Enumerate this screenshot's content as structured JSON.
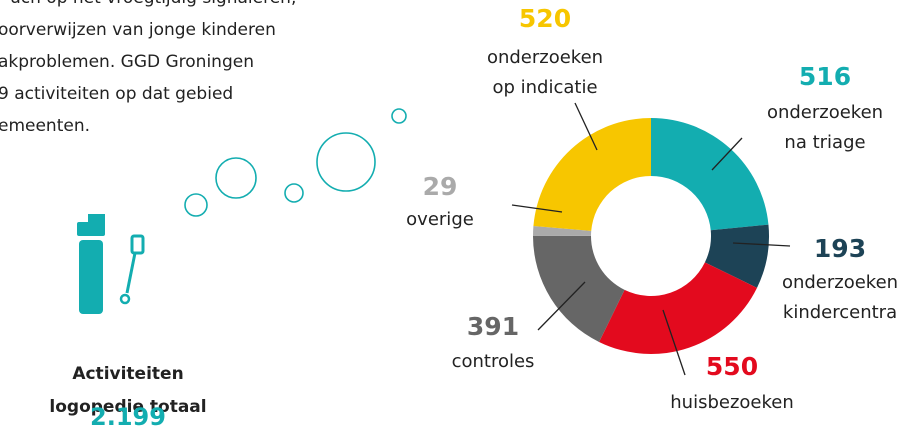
{
  "intro": [
    "uch op het vroegtijdig signaleren,",
    "oorverwijzen van jonge kinderen",
    "akproblemen. GGD Groningen",
    "9 activiteiten op dat gebied",
    "emeenten."
  ],
  "chart_data": {
    "type": "donut",
    "total_label": [
      "Activiteiten",
      "logopedie totaal"
    ],
    "total": {
      "value": 2199,
      "label": "2.199"
    },
    "series": [
      {
        "label_lines": [
          "onderzoeken",
          "na triage"
        ],
        "value": 516,
        "color": "#13adb0"
      },
      {
        "label_lines": [
          "onderzoeken",
          "kindercentra"
        ],
        "value": 193,
        "color": "#1d4356"
      },
      {
        "label_lines": [
          "huisbezoeken"
        ],
        "value": 550,
        "color": "#e30a1e"
      },
      {
        "label_lines": [
          "controles"
        ],
        "value": 391,
        "color": "#666666"
      },
      {
        "label_lines": [
          "overige"
        ],
        "value": 29,
        "color": "#aaaaaa"
      },
      {
        "label_lines": [
          "onderzoeken",
          "op indicatie"
        ],
        "value": 520,
        "color": "#f7c600"
      }
    ]
  }
}
